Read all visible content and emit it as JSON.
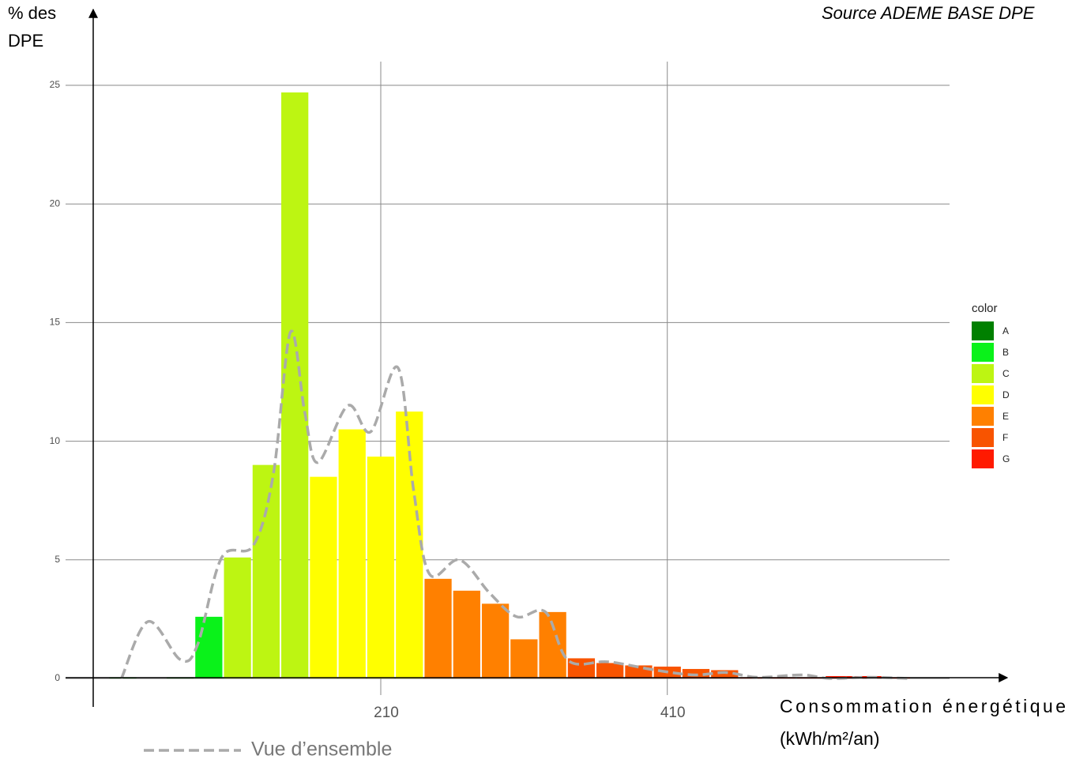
{
  "chart_data": {
    "type": "histogram",
    "title_y": [
      "% des",
      "DPE"
    ],
    "source": "Source ADEME BASE DPE",
    "x_label": [
      "Consommation énergétique",
      "(kWh/m²/an)"
    ],
    "bins": [
      20,
      40,
      60,
      80,
      100,
      120,
      140,
      160,
      180,
      200,
      220,
      240,
      260,
      280,
      300,
      320,
      340,
      360,
      380,
      400,
      420,
      440,
      460,
      480,
      500,
      520,
      540,
      560,
      580
    ],
    "values": [
      0.05,
      0,
      0.05,
      2.6,
      5.1,
      9.0,
      24.7,
      8.5,
      10.5,
      9.35,
      11.25,
      4.2,
      3.7,
      3.15,
      1.65,
      2.8,
      0.85,
      0.65,
      0.55,
      0.5,
      0.4,
      0.35,
      0.05,
      0.05,
      0.05,
      0.1,
      0.1,
      0.05
    ],
    "colors": [
      "#008000",
      "#008000",
      "#008000",
      "#0af21a",
      "#bdf512",
      "#bdf512",
      "#bdf512",
      "#ffff00",
      "#ffff00",
      "#ffff00",
      "#ffff00",
      "#ff8000",
      "#ff8000",
      "#ff8000",
      "#ff8000",
      "#ff8000",
      "#f85400",
      "#f85400",
      "#f85400",
      "#f85400",
      "#f85400",
      "#f85400",
      "#ff1a00",
      "#ff1a00",
      "#ff1a00",
      "#ff1a00",
      "#ff1a00",
      "#ff1a00"
    ],
    "legend": {
      "title": "color",
      "items": [
        {
          "name": "A",
          "color": "#008000"
        },
        {
          "name": "B",
          "color": "#0af21a"
        },
        {
          "name": "C",
          "color": "#bdf512"
        },
        {
          "name": "D",
          "color": "#ffff00"
        },
        {
          "name": "E",
          "color": "#ff8000"
        },
        {
          "name": "F",
          "color": "#f85400"
        },
        {
          "name": "G",
          "color": "#ff1a00"
        }
      ]
    },
    "density": {
      "name": "Vue d’ensemble",
      "color": "#aaaaaa",
      "x": [
        29,
        47.6,
        70,
        82,
        99,
        121,
        135,
        147,
        157,
        166,
        187,
        203,
        222,
        233,
        244,
        265,
        286,
        305,
        325,
        341,
        369,
        402,
        429,
        451,
        473,
        504,
        523,
        550,
        578
      ],
      "values": [
        0,
        2.4,
        0.8,
        1.4,
        5.1,
        5.6,
        8.6,
        14.6,
        11.2,
        9.1,
        11.5,
        10.4,
        13.1,
        7.9,
        4.4,
        5.0,
        3.6,
        2.6,
        2.8,
        0.75,
        0.7,
        0.35,
        0.15,
        0.25,
        0.05,
        0.15,
        0,
        0.05,
        0
      ]
    },
    "xlim": [
      -10,
      607
    ],
    "ylim": [
      -0.7,
      26
    ],
    "xticks": [
      210,
      410
    ],
    "yticks": [
      0,
      5,
      10,
      15,
      20,
      25
    ],
    "grid": true
  }
}
